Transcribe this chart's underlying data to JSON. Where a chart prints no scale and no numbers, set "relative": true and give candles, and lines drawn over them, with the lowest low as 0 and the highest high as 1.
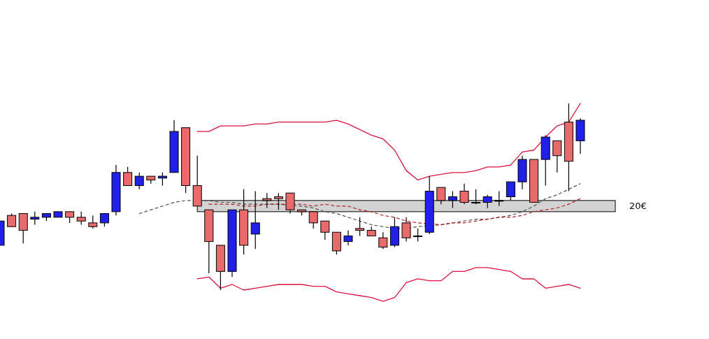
{
  "chart_data": {
    "type": "candlestick",
    "relative": true,
    "categories": [
      null,
      null,
      null,
      null,
      null,
      null,
      null,
      null,
      null,
      null,
      null,
      null,
      null,
      null,
      null,
      null,
      null,
      null,
      null,
      null,
      null,
      null,
      null,
      null,
      null,
      null,
      null,
      null,
      null,
      null,
      null,
      null,
      null,
      null,
      null,
      null,
      null,
      null,
      null,
      null,
      null,
      null,
      null,
      null,
      null,
      null,
      null,
      null,
      null,
      null,
      null
    ],
    "ohlc": [
      [
        0.24,
        0.37,
        0.24,
        0.37
      ],
      [
        0.4,
        0.41,
        0.34,
        0.34
      ],
      [
        0.41,
        0.41,
        0.25,
        0.32
      ],
      [
        0.38,
        0.42,
        0.35,
        0.39
      ],
      [
        0.39,
        0.41,
        0.37,
        0.41
      ],
      [
        0.39,
        0.42,
        0.39,
        0.42
      ],
      [
        0.42,
        0.42,
        0.36,
        0.39
      ],
      [
        0.39,
        0.42,
        0.35,
        0.37
      ],
      [
        0.36,
        0.4,
        0.33,
        0.34
      ],
      [
        0.36,
        0.41,
        0.34,
        0.41
      ],
      [
        0.42,
        0.67,
        0.4,
        0.63
      ],
      [
        0.63,
        0.66,
        0.56,
        0.56
      ],
      [
        0.56,
        0.63,
        0.54,
        0.61
      ],
      [
        0.61,
        0.61,
        0.57,
        0.59
      ],
      [
        0.6,
        0.63,
        0.56,
        0.61
      ],
      [
        0.63,
        0.91,
        0.63,
        0.85
      ],
      [
        0.87,
        0.87,
        0.52,
        0.56
      ],
      [
        0.56,
        0.72,
        0.45,
        0.45
      ],
      [
        0.43,
        0.43,
        0.09,
        0.26
      ],
      [
        0.24,
        0.24,
        0,
        0.1
      ],
      [
        0.1,
        0.43,
        0.07,
        0.43
      ],
      [
        0.43,
        0.54,
        0.19,
        0.24
      ],
      [
        0.3,
        0.53,
        0.22,
        0.36
      ],
      [
        0.49,
        0.52,
        0.44,
        0.48
      ],
      [
        0.5,
        0.52,
        0.43,
        0.49
      ],
      [
        0.52,
        0.52,
        0.41,
        0.43
      ],
      [
        0.43,
        0.43,
        0.4,
        0.42
      ],
      [
        0.42,
        0.42,
        0.33,
        0.36
      ],
      [
        0.37,
        0.37,
        0.27,
        0.31
      ],
      [
        0.31,
        0.31,
        0.19,
        0.21
      ],
      [
        0.26,
        0.32,
        0.24,
        0.29
      ],
      [
        0.33,
        0.39,
        0.29,
        0.32
      ],
      [
        0.32,
        0.34,
        0.29,
        0.29
      ],
      [
        0.28,
        0.31,
        0.22,
        0.23
      ],
      [
        0.24,
        0.39,
        0.23,
        0.34
      ],
      [
        0.36,
        0.39,
        0.26,
        0.28
      ],
      [
        0.29,
        0.33,
        0.26,
        0.29
      ],
      [
        0.31,
        0.61,
        0.3,
        0.53
      ],
      [
        0.55,
        0.55,
        0.46,
        0.48
      ],
      [
        0.48,
        0.53,
        0.44,
        0.5
      ],
      [
        0.53,
        0.57,
        0.46,
        0.47
      ],
      [
        0.47,
        0.54,
        0.46,
        0.47
      ],
      [
        0.47,
        0.51,
        0.44,
        0.5
      ],
      [
        0.48,
        0.53,
        0.45,
        0.48
      ],
      [
        0.5,
        0.58,
        0.48,
        0.58
      ],
      [
        0.58,
        0.72,
        0.54,
        0.7
      ],
      [
        0.7,
        0.7,
        0.47,
        0.47
      ],
      [
        0.7,
        0.83,
        0.56,
        0.82
      ],
      [
        0.8,
        0.8,
        0.63,
        0.72
      ],
      [
        0.9,
        1.0,
        0.53,
        0.69
      ],
      [
        0.8,
        0.92,
        0.73,
        0.91
      ]
    ],
    "colors": [
      "#2020e8",
      "#e86a6a",
      "#e86a6a",
      "#2020e8",
      "#2020e8",
      "#2020e8",
      "#e86a6a",
      "#e86a6a",
      "#e86a6a",
      "#2020e8",
      "#2020e8",
      "#e86a6a",
      "#2020e8",
      "#e86a6a",
      "#2020e8",
      "#2020e8",
      "#e86a6a",
      "#e86a6a",
      "#e86a6a",
      "#e86a6a",
      "#2020e8",
      "#e86a6a",
      "#2020e8",
      "#e86a6a",
      "#e86a6a",
      "#e86a6a",
      "#e86a6a",
      "#e86a6a",
      "#e86a6a",
      "#e86a6a",
      "#2020e8",
      "#e86a6a",
      "#e86a6a",
      "#e86a6a",
      "#2020e8",
      "#e86a6a",
      "#000000",
      "#2020e8",
      "#e86a6a",
      "#2020e8",
      "#e86a6a",
      "#000000",
      "#2020e8",
      "#000000",
      "#2020e8",
      "#2020e8",
      "#e86a6a",
      "#2020e8",
      "#e86a6a",
      "#e86a6a",
      "#2020e8"
    ],
    "series": [
      {
        "type": "line",
        "color": "#dc143c",
        "line_style": "solid",
        "values": [
          null,
          null,
          null,
          null,
          null,
          null,
          null,
          null,
          null,
          null,
          null,
          null,
          null,
          null,
          null,
          null,
          null,
          0.85,
          0.85,
          0.88,
          0.88,
          0.88,
          0.89,
          0.89,
          0.9,
          0.9,
          0.9,
          0.9,
          0.9,
          0.91,
          0.89,
          0.86,
          0.83,
          0.81,
          0.75,
          0.64,
          0.59,
          0.61,
          0.62,
          0.63,
          0.63,
          0.64,
          0.66,
          0.66,
          0.67,
          0.74,
          0.75,
          0.82,
          0.88,
          0.9,
          1.0
        ]
      },
      {
        "type": "line",
        "color": "#dc143c",
        "line_style": "solid",
        "values": [
          null,
          null,
          null,
          null,
          null,
          null,
          null,
          null,
          null,
          null,
          null,
          null,
          null,
          null,
          null,
          null,
          null,
          0.06,
          0.07,
          0.01,
          0.03,
          0.0,
          0.01,
          0.02,
          0.03,
          0.03,
          0.03,
          0.02,
          0.02,
          -0.01,
          -0.02,
          -0.03,
          -0.04,
          -0.06,
          -0.04,
          0.04,
          0.06,
          0.05,
          0.05,
          0.1,
          0.1,
          0.12,
          0.12,
          0.11,
          0.1,
          0.06,
          0.06,
          0.01,
          0.02,
          0.03,
          0.01
        ]
      },
      {
        "type": "line",
        "color": "#555555",
        "line_style": "dashed",
        "values": [
          null,
          null,
          null,
          null,
          null,
          null,
          null,
          null,
          null,
          null,
          null,
          null,
          0.41,
          0.43,
          0.45,
          0.47,
          0.48,
          null,
          0.48,
          0.47,
          0.47,
          0.46,
          0.46,
          0.46,
          0.46,
          null,
          0.45,
          0.44,
          0.42,
          0.41,
          0.39,
          0.37,
          0.35,
          0.34,
          0.33,
          0.33,
          0.34,
          null,
          0.35,
          0.36,
          0.37,
          0.38,
          0.38,
          0.39,
          0.4,
          0.42,
          0.45,
          0.49,
          0.51,
          0.54,
          0.57
        ]
      },
      {
        "type": "line",
        "color": "#b22222",
        "line_style": "dashed",
        "values": [
          null,
          null,
          null,
          null,
          null,
          null,
          null,
          null,
          null,
          null,
          null,
          null,
          null,
          null,
          null,
          null,
          null,
          null,
          0.46,
          0.46,
          0.46,
          0.45,
          0.45,
          0.46,
          0.46,
          null,
          0.46,
          0.45,
          0.46,
          0.45,
          0.45,
          0.43,
          0.42,
          0.4,
          0.39,
          0.37,
          0.36,
          null,
          0.35,
          0.36,
          0.36,
          0.37,
          0.38,
          0.39,
          0.39,
          0.4,
          0.42,
          0.43,
          0.44,
          0.46,
          0.49
        ]
      }
    ],
    "bands": [
      {
        "axis": "y",
        "from": 0.42,
        "to": 0.48,
        "label": "20€",
        "color": "#d3d3d3"
      }
    ]
  }
}
